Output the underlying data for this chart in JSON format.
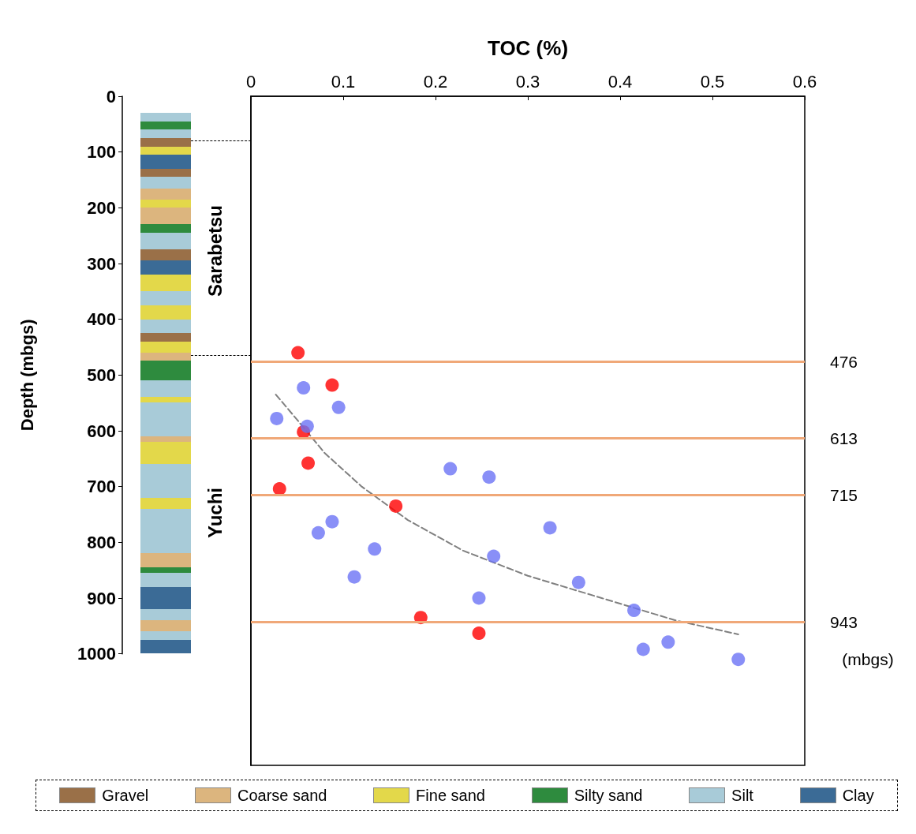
{
  "chart_data": {
    "type": "scatter",
    "xlabel": "TOC (%)",
    "ylabel": "Depth (mbgs)",
    "xlim": [
      0,
      0.6
    ],
    "xticks": [
      0,
      0.1,
      0.2,
      0.3,
      0.4,
      0.5,
      0.6
    ],
    "ylim": [
      1200,
      0
    ],
    "yticks": [
      0,
      100,
      200,
      300,
      400,
      500,
      600,
      700,
      800,
      900,
      1000
    ],
    "marker": "circle",
    "ref_lines": [
      {
        "axis": "y",
        "value": 476,
        "label": "476",
        "color": "#f0a878"
      },
      {
        "axis": "y",
        "value": 613,
        "label": "613",
        "color": "#f0a878"
      },
      {
        "axis": "y",
        "value": 715,
        "label": "715",
        "color": "#f0a878"
      },
      {
        "axis": "y",
        "value": 943,
        "label": "943",
        "color": "#f0a878"
      }
    ],
    "annotations": [
      "Sarabetsu",
      "Yuchi",
      "(mbgs)",
      "Gravel",
      "Coarse sand",
      "Fine sand",
      "Silty sand",
      "Silt",
      "Clay"
    ],
    "series": [
      {
        "color": "#ff0000",
        "x": [
          0.051,
          0.088,
          0.057,
          0.062,
          0.031,
          0.157,
          0.184,
          0.247
        ],
        "values": [
          460,
          518,
          602,
          658,
          704,
          735,
          935,
          963
        ]
      },
      {
        "color": "#6b73f5",
        "x": [
          0.057,
          0.095,
          0.028,
          0.061,
          0.216,
          0.258,
          0.088,
          0.073,
          0.324,
          0.134,
          0.263,
          0.112,
          0.355,
          0.247,
          0.415,
          0.452,
          0.425,
          0.528
        ],
        "values": [
          523,
          558,
          578,
          592,
          668,
          683,
          763,
          783,
          774,
          812,
          825,
          862,
          872,
          900,
          922,
          979,
          992,
          1010
        ]
      },
      {
        "type": "line",
        "color": "#808080",
        "marker": "none",
        "line_style": "dashed",
        "x": [
          0.027,
          0.05,
          0.08,
          0.12,
          0.17,
          0.23,
          0.3,
          0.38,
          0.46,
          0.528
        ],
        "values": [
          535,
          580,
          640,
          700,
          760,
          815,
          860,
          900,
          940,
          965
        ]
      }
    ]
  }
}
